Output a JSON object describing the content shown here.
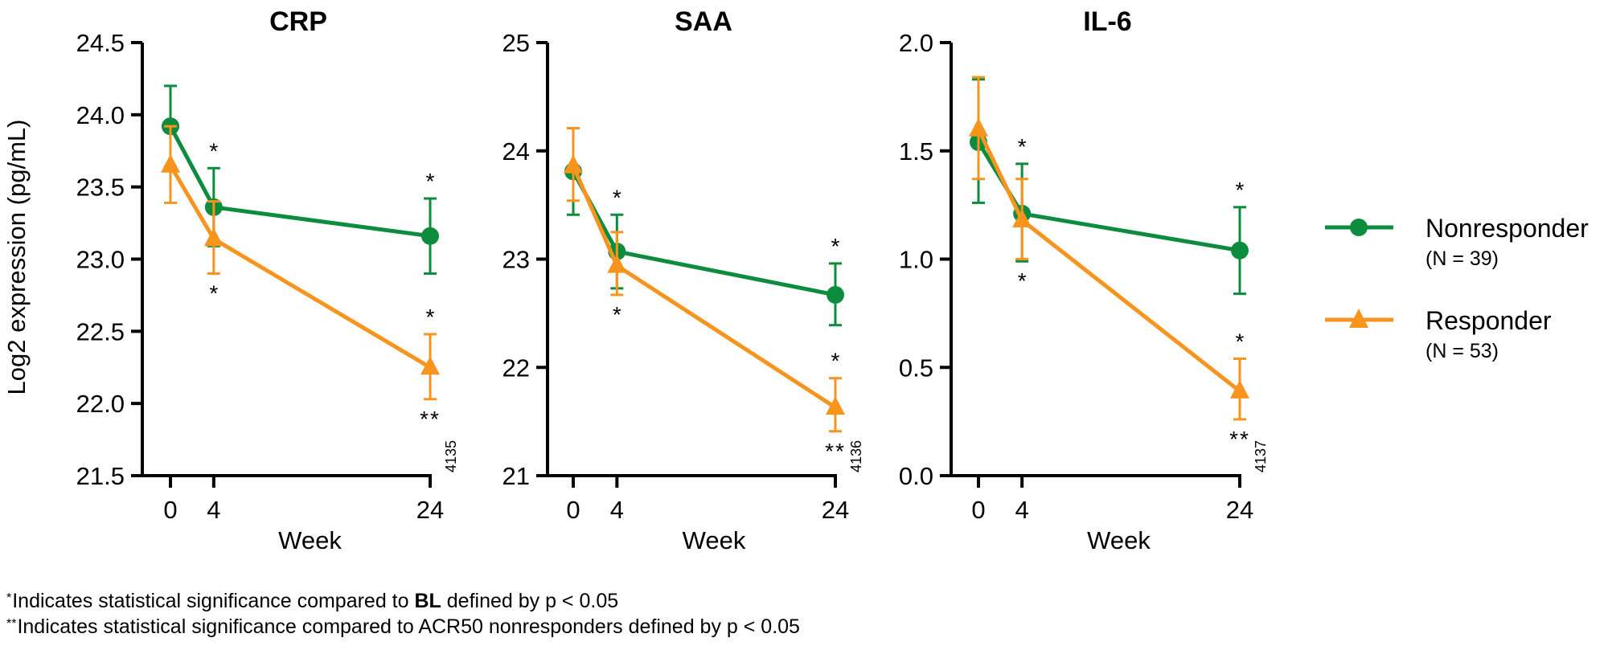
{
  "figure": {
    "ylabel": "Log2 expression (pg/mL)",
    "footnotes": [
      {
        "marker": "*",
        "before": "Indicates statistical significance compared to ",
        "bold": "BL",
        "after": " defined by p < 0.05"
      },
      {
        "marker": "**",
        "before": "Indicates statistical significance compared to ACR50 nonresponders defined by p < 0.05",
        "bold": "",
        "after": ""
      }
    ]
  },
  "colors": {
    "nonresponder": "#0E8C3E",
    "responder": "#F7941D",
    "axis": "#000000"
  },
  "legend": {
    "placement": "right",
    "items": [
      {
        "key": "nonresponder",
        "label": "Nonresponder",
        "n": "(N = 39)",
        "marker": "circle"
      },
      {
        "key": "responder",
        "label": "Responder",
        "n": "(N = 53)",
        "marker": "triangle"
      }
    ]
  },
  "chart_data": [
    {
      "type": "line",
      "title": "CRP",
      "xlabel": "Week",
      "ylabel": "Log2 expression (pg/mL)",
      "x": [
        0,
        4,
        24
      ],
      "xticks": [
        "0",
        "4",
        "24"
      ],
      "ylim": [
        21.5,
        24.5
      ],
      "yticks": [
        "21.5",
        "22.0",
        "22.5",
        "23.0",
        "23.5",
        "24.0",
        "24.5"
      ],
      "code": "4135",
      "series": [
        {
          "name": "Nonresponder",
          "key": "nonresponder",
          "values": [
            23.92,
            23.36,
            23.16
          ],
          "err_low": [
            23.64,
            23.09,
            22.9
          ],
          "err_high": [
            24.2,
            23.63,
            23.42
          ],
          "annot": [
            "",
            "*",
            "*"
          ],
          "annot_pos": "above"
        },
        {
          "name": "Responder",
          "key": "responder",
          "values": [
            23.65,
            23.14,
            22.25
          ],
          "err_low": [
            23.39,
            22.9,
            22.03
          ],
          "err_high": [
            23.92,
            23.4,
            22.48
          ],
          "annot": [
            "",
            "*",
            "*"
          ],
          "annot_pos": "mixed",
          "annot2": [
            "",
            "",
            "**"
          ]
        }
      ]
    },
    {
      "type": "line",
      "title": "SAA",
      "xlabel": "Week",
      "ylabel": "",
      "x": [
        0,
        4,
        24
      ],
      "xticks": [
        "0",
        "4",
        "24"
      ],
      "ylim": [
        21,
        25
      ],
      "yticks": [
        "21",
        "22",
        "23",
        "24",
        "25"
      ],
      "code": "4136",
      "series": [
        {
          "name": "Nonresponder",
          "key": "nonresponder",
          "values": [
            23.81,
            23.07,
            22.67
          ],
          "err_low": [
            23.41,
            22.73,
            22.39
          ],
          "err_high": [
            24.21,
            23.41,
            22.96
          ],
          "annot": [
            "",
            "*",
            "*"
          ],
          "annot_pos": "above"
        },
        {
          "name": "Responder",
          "key": "responder",
          "values": [
            23.86,
            22.94,
            21.63
          ],
          "err_low": [
            23.54,
            22.67,
            21.41
          ],
          "err_high": [
            24.21,
            23.25,
            21.9
          ],
          "annot": [
            "",
            "*",
            "*"
          ],
          "annot_pos": "mixed",
          "annot2": [
            "",
            "",
            "**"
          ]
        }
      ]
    },
    {
      "type": "line",
      "title": "IL-6",
      "xlabel": "Week",
      "ylabel": "",
      "x": [
        0,
        4,
        24
      ],
      "xticks": [
        "0",
        "4",
        "24"
      ],
      "ylim": [
        0.0,
        2.0
      ],
      "yticks": [
        "0.0",
        "0.5",
        "1.0",
        "1.5",
        "2.0"
      ],
      "code": "4137",
      "series": [
        {
          "name": "Nonresponder",
          "key": "nonresponder",
          "values": [
            1.54,
            1.21,
            1.04
          ],
          "err_low": [
            1.26,
            0.99,
            0.84
          ],
          "err_high": [
            1.83,
            1.44,
            1.24
          ],
          "annot": [
            "",
            "*",
            "*"
          ],
          "annot_pos": "above"
        },
        {
          "name": "Responder",
          "key": "responder",
          "values": [
            1.6,
            1.18,
            0.39
          ],
          "err_low": [
            1.37,
            1.0,
            0.26
          ],
          "err_high": [
            1.84,
            1.37,
            0.54
          ],
          "annot": [
            "",
            "*",
            "*"
          ],
          "annot_pos": "mixed",
          "annot2": [
            "",
            "",
            "**"
          ]
        }
      ]
    }
  ]
}
